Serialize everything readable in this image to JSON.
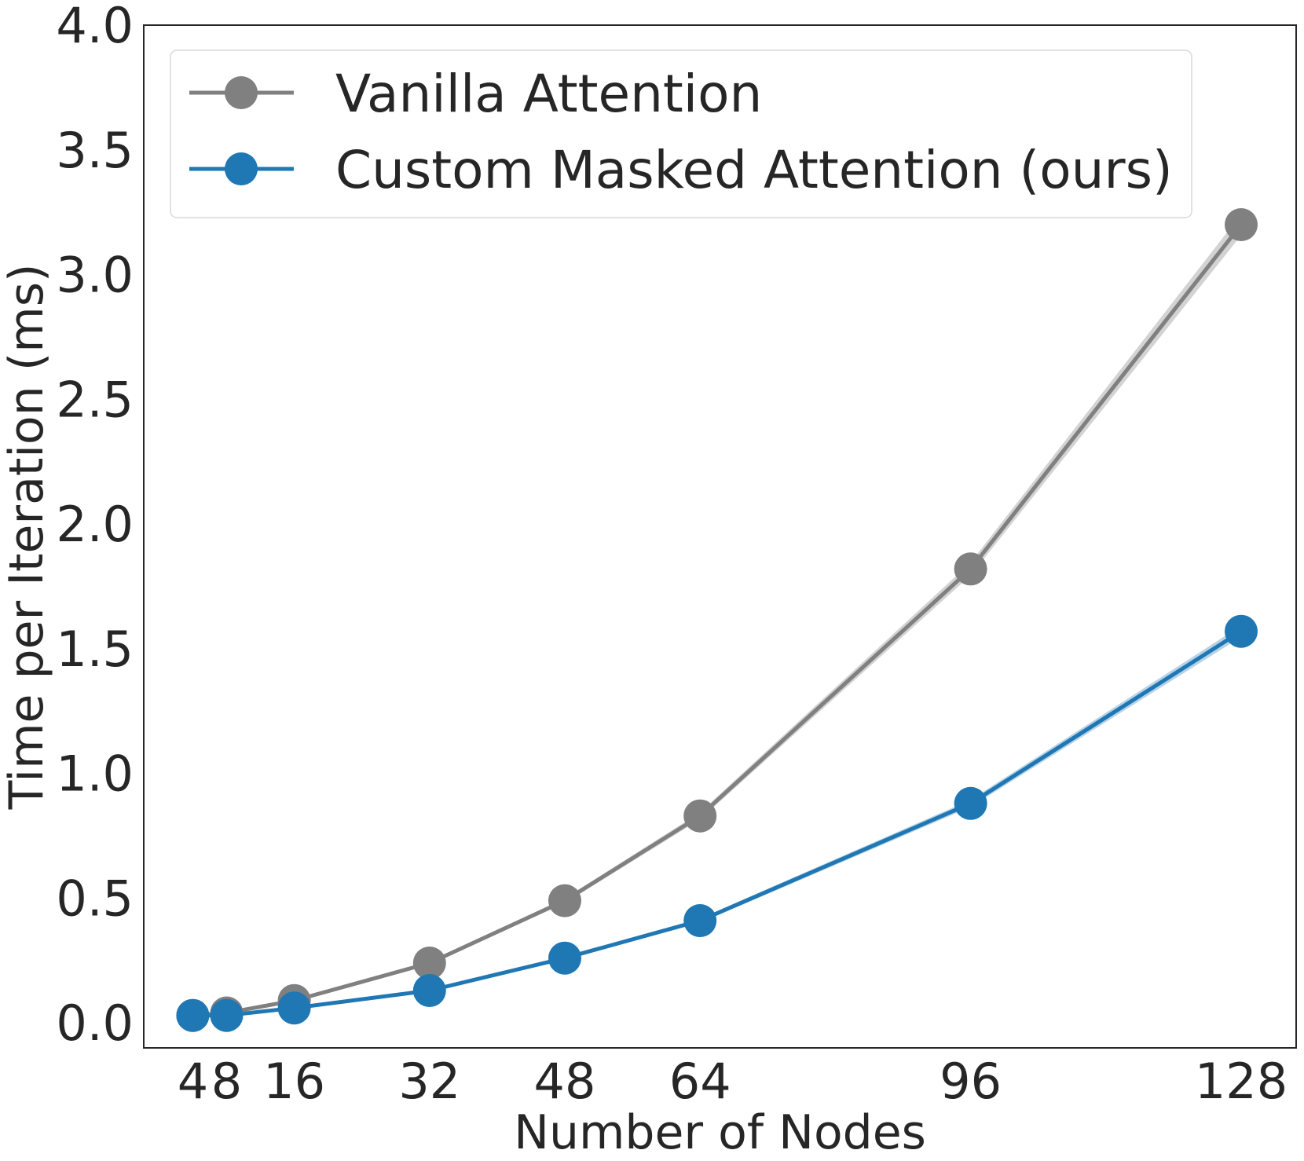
{
  "chart_data": {
    "type": "line",
    "title": "",
    "xlabel": "Number of Nodes",
    "ylabel": "Time per Iteration (ms)",
    "x": [
      4,
      8,
      16,
      32,
      48,
      64,
      96,
      128
    ],
    "x_tick_values": [
      4,
      8,
      16,
      32,
      48,
      64,
      96,
      128
    ],
    "x_tick_labels": [
      "4",
      "8",
      "16",
      "32",
      "48",
      "64",
      "96",
      "128"
    ],
    "xlim": [
      -1.8,
      134.5
    ],
    "ylim": [
      -0.1,
      4.0
    ],
    "y_ticks": [
      0.0,
      0.5,
      1.0,
      1.5,
      2.0,
      2.5,
      3.0,
      3.5,
      4.0
    ],
    "y_tick_labels": [
      "0.0",
      "0.5",
      "1.0",
      "1.5",
      "2.0",
      "2.5",
      "3.0",
      "3.5",
      "4.0"
    ],
    "grid": false,
    "legend_position": "top-left",
    "series": [
      {
        "name": "Vanilla Attention",
        "color": "#808080",
        "band_color": "#c8c8c8",
        "values": [
          0.03,
          0.04,
          0.09,
          0.24,
          0.49,
          0.83,
          1.82,
          3.2
        ]
      },
      {
        "name": "Custom Masked Attention (ours)",
        "color": "#1f77b4",
        "band_color": "#a6c8e0",
        "values": [
          0.03,
          0.03,
          0.06,
          0.13,
          0.26,
          0.41,
          0.88,
          1.57
        ]
      }
    ]
  }
}
